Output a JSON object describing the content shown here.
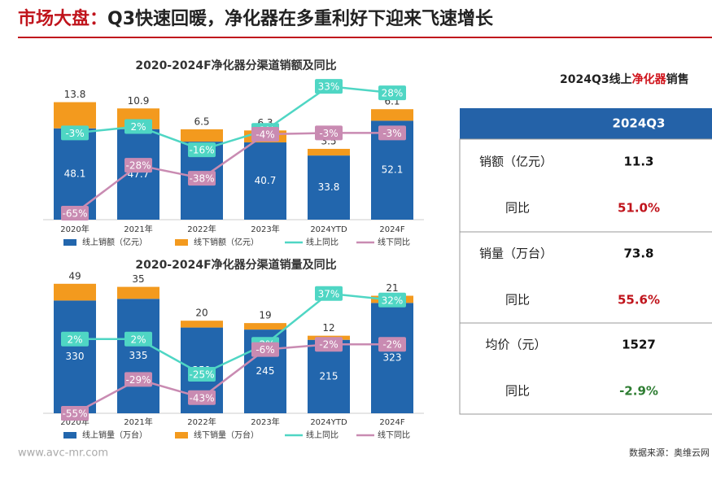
{
  "header": {
    "title_prefix": "市场大盘：",
    "title_main": "Q3快速回暖，净化器在多重利好下迎来飞速增长"
  },
  "chart_data": [
    {
      "type": "bar",
      "title": "2020-2024F净化器分渠道销额及同比",
      "categories": [
        "2020年",
        "2021年",
        "2022年",
        "2023年",
        "2024YTD",
        "2024F"
      ],
      "series": [
        {
          "name": "线上销额（亿元）",
          "color": "#2266ad",
          "values": [
            48.1,
            47.7,
            41.1,
            40.7,
            33.8,
            52.1
          ]
        },
        {
          "name": "线下销额（亿元）",
          "color": "#f39a1e",
          "values": [
            13.8,
            10.9,
            6.5,
            6.3,
            3.5,
            6.1
          ]
        },
        {
          "name": "线上同比",
          "color": "#4fd6c4",
          "axis": "y2",
          "values": [
            -3,
            2,
            -16,
            -1,
            33,
            28
          ],
          "value_labels": [
            "-3%",
            "2%",
            "-16%",
            "-1%",
            "33%",
            "28%"
          ]
        },
        {
          "name": "线下同比",
          "color": "#c98bb2",
          "axis": "y2",
          "values": [
            -65,
            -28,
            -38,
            -4,
            -3,
            -3
          ],
          "value_labels": [
            "-65%",
            "-28%",
            "-38%",
            "-4%",
            "-3%",
            "-3%"
          ]
        }
      ],
      "ylim": [
        0,
        75
      ],
      "y2lim": [
        -70,
        40
      ]
    },
    {
      "type": "bar",
      "title": "2020-2024F净化器分渠道销量及同比",
      "categories": [
        "2020年",
        "2021年",
        "2022年",
        "2023年",
        "2024YTD",
        "2024F"
      ],
      "series": [
        {
          "name": "线上销量（万台）",
          "color": "#2266ad",
          "values": [
            330,
            335,
            251,
            245,
            215,
            323
          ]
        },
        {
          "name": "线下销量（万台）",
          "color": "#f39a1e",
          "values": [
            49,
            35,
            20,
            19,
            12,
            21
          ]
        },
        {
          "name": "线上同比",
          "color": "#4fd6c4",
          "axis": "y2",
          "values": [
            2,
            2,
            -25,
            -2,
            37,
            32
          ],
          "value_labels": [
            "2%",
            "2%",
            "-25%",
            "-2%",
            "37%",
            "32%"
          ]
        },
        {
          "name": "线下同比",
          "color": "#c98bb2",
          "axis": "y2",
          "values": [
            -55,
            -29,
            -43,
            -6,
            -2,
            -2
          ],
          "value_labels": [
            "-55%",
            "-29%",
            "-43%",
            "-6%",
            "-2%",
            "-2%"
          ]
        }
      ],
      "ylim": [
        0,
        400
      ],
      "y2lim": [
        -55,
        50
      ]
    }
  ],
  "table": {
    "title_a": "2024Q3线上",
    "title_b": "净化器",
    "title_c": "销售",
    "header": "2024Q3",
    "rows": [
      [
        "销额（亿元）",
        "11.3"
      ],
      [
        "同比",
        "51.0%"
      ],
      [
        "销量（万台）",
        "73.8"
      ],
      [
        "同比",
        "55.6%"
      ],
      [
        "均价（元）",
        "1527"
      ],
      [
        "同比",
        "-2.9%"
      ]
    ]
  },
  "footer": {
    "site": "www.avc-mr.com",
    "source": "数据来源：奥维云网"
  }
}
